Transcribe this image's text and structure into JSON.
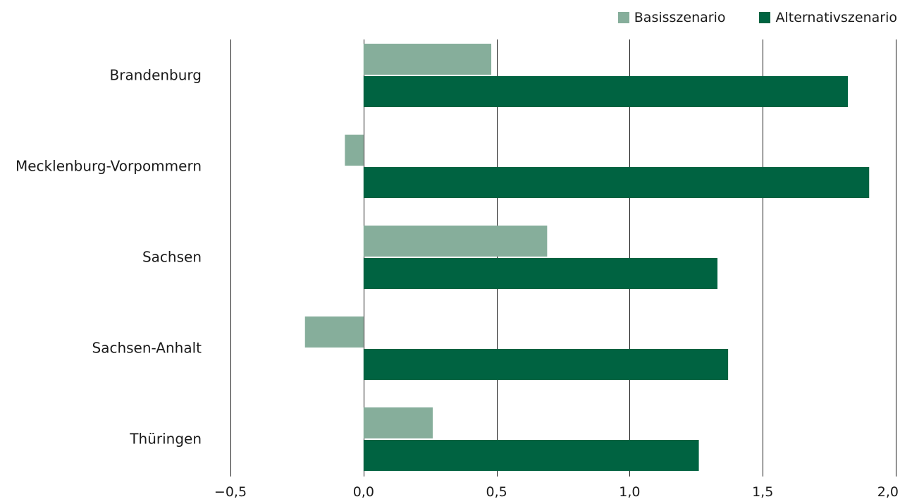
{
  "legend": {
    "items": [
      {
        "label": "Basisszenario",
        "color": "#86ae9b"
      },
      {
        "label": "Alternativszenario",
        "color": "#006341"
      }
    ]
  },
  "chart_data": {
    "type": "bar",
    "orientation": "horizontal",
    "categories": [
      "Brandenburg",
      "Mecklenburg-Vorpommern",
      "Sachsen",
      "Sachsen-Anhalt",
      "Thüringen"
    ],
    "series": [
      {
        "name": "Basisszenario",
        "color": "#86ae9b",
        "values": [
          0.48,
          -0.07,
          0.69,
          -0.22,
          0.26
        ]
      },
      {
        "name": "Alternativszenario",
        "color": "#006341",
        "values": [
          1.82,
          1.9,
          1.33,
          1.37,
          1.26
        ]
      }
    ],
    "xlim": [
      -0.5,
      2.0
    ],
    "xticks": [
      -0.5,
      0.0,
      0.5,
      1.0,
      1.5,
      2.0
    ],
    "xtick_labels": [
      "−0,5",
      "0,0",
      "0,5",
      "1,0",
      "1,5",
      "2,0"
    ],
    "grid": "vertical",
    "legend_position": "top-right",
    "title": "",
    "xlabel": "",
    "ylabel": ""
  }
}
